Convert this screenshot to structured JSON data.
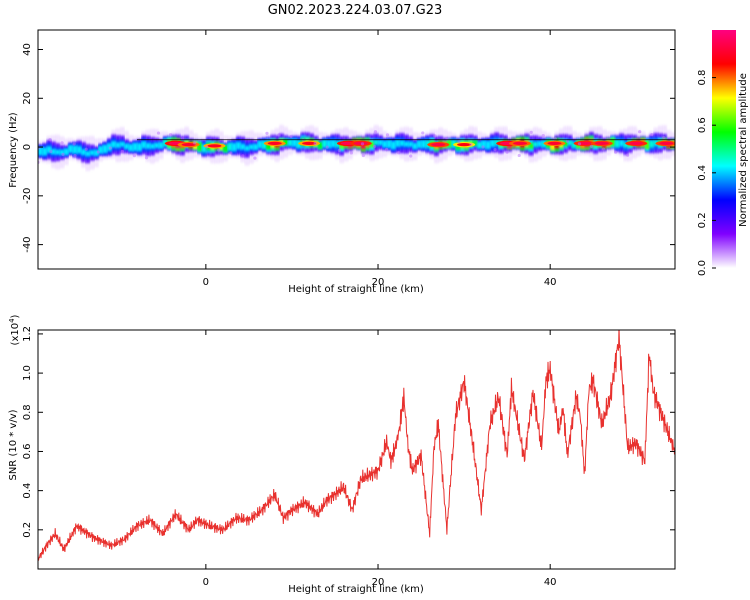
{
  "figure": {
    "title": "GN02.2023.224.03.07.G23"
  },
  "colorbar": {
    "label": "Normalized spectral amplitude",
    "ticks": [
      0.0,
      0.2,
      0.4,
      0.6,
      0.8
    ],
    "tick_labels": [
      "0.0",
      "0.2",
      "0.4",
      "0.6",
      "0.8"
    ],
    "range": [
      0,
      1
    ],
    "colormap": [
      "#ffffff",
      "#8000ff",
      "#0000ff",
      "#00ffff",
      "#00ff00",
      "#ffff00",
      "#ff0000",
      "#ff0080"
    ]
  },
  "chart_data": [
    {
      "type": "heatmap",
      "xlabel": "Height of straight line (km)",
      "ylabel": "Frequency (Hz)",
      "xlim": [
        -19.5,
        54.5
      ],
      "ylim": [
        -50,
        48
      ],
      "xticks": [
        0,
        20,
        40
      ],
      "xtick_labels": [
        "0",
        "20",
        "40"
      ],
      "yticks": [
        -40,
        -20,
        0,
        20,
        40
      ],
      "ytick_labels": [
        "-40",
        "-20",
        "0",
        "20",
        "40"
      ],
      "grid": false,
      "band": {
        "x_range": [
          -19.5,
          54.5
        ],
        "center_frequency": [
          [
            -19.5,
            -1.5
          ],
          [
            -17,
            -2
          ],
          [
            -15,
            -1
          ],
          [
            -13,
            -3
          ],
          [
            -11,
            1
          ],
          [
            -8,
            0
          ],
          [
            -4,
            1.5
          ],
          [
            0,
            0
          ],
          [
            5,
            0
          ],
          [
            10,
            2
          ],
          [
            15,
            1
          ],
          [
            20,
            1.5
          ],
          [
            25,
            1
          ],
          [
            30,
            1
          ],
          [
            35,
            1.5
          ],
          [
            40,
            1
          ],
          [
            45,
            1.5
          ],
          [
            50,
            1.5
          ],
          [
            54.5,
            1.5
          ]
        ],
        "half_width": 3,
        "hot_spots": [
          [
            -3.5,
            1.5,
            1.0
          ],
          [
            -2,
            1.0,
            0.8
          ],
          [
            1,
            0.5,
            0.7
          ],
          [
            8,
            1.5,
            0.75
          ],
          [
            12,
            1.5,
            0.7
          ],
          [
            16.5,
            1.5,
            1.0
          ],
          [
            18,
            1.5,
            0.95
          ],
          [
            27,
            1.0,
            0.9
          ],
          [
            30,
            1.0,
            0.6
          ],
          [
            35,
            1.5,
            1.0
          ],
          [
            36.5,
            1.5,
            0.85
          ],
          [
            40.5,
            1.5,
            0.8
          ],
          [
            44,
            1.5,
            0.95
          ],
          [
            46,
            1.5,
            0.9
          ],
          [
            50,
            1.5,
            0.95
          ],
          [
            53.5,
            1.5,
            0.9
          ]
        ]
      }
    },
    {
      "type": "line",
      "xlabel": "Height of straight line (km)",
      "ylabel": "SNR (10 * v/v)",
      "yscale_label": "(x10",
      "yscale_exponent": "4",
      "yscale_suffix": ")",
      "xlim": [
        -19.5,
        54.5
      ],
      "ylim": [
        0.0,
        1.22
      ],
      "xticks": [
        0,
        20,
        40
      ],
      "xtick_labels": [
        "0",
        "20",
        "40"
      ],
      "yticks": [
        0.2,
        0.4,
        0.6,
        0.8,
        1.0,
        1.2
      ],
      "ytick_labels": [
        "0.2",
        "0.4",
        "0.6",
        "0.8",
        "1.0",
        "1.2"
      ],
      "grid": false,
      "color": "#e8312e",
      "series": [
        {
          "x": [
            -19.5,
            -18.5,
            -17.5,
            -16.5,
            -15,
            -13,
            -11,
            -9.5,
            -8,
            -6.5,
            -5,
            -3.5,
            -2,
            -1,
            0.5,
            2,
            3.5,
            5,
            6.5,
            8,
            9,
            10,
            11.5,
            13,
            14,
            15,
            16,
            17,
            18,
            19,
            20,
            21,
            21.5,
            22,
            22.5,
            23,
            23.5,
            24,
            25,
            26,
            26.5,
            27,
            28,
            29,
            30,
            31,
            32,
            33,
            34,
            35,
            35.5,
            36,
            37,
            38,
            39,
            39.5,
            40,
            41,
            41.5,
            42,
            43,
            43.5,
            44,
            44.5,
            45,
            46,
            47,
            48,
            49,
            50,
            51,
            51.5,
            52,
            53,
            54,
            54.5
          ],
          "y": [
            0.05,
            0.12,
            0.18,
            0.1,
            0.22,
            0.16,
            0.12,
            0.15,
            0.22,
            0.25,
            0.18,
            0.28,
            0.2,
            0.25,
            0.22,
            0.2,
            0.26,
            0.25,
            0.3,
            0.38,
            0.26,
            0.3,
            0.34,
            0.28,
            0.35,
            0.38,
            0.42,
            0.3,
            0.46,
            0.48,
            0.5,
            0.65,
            0.55,
            0.62,
            0.72,
            0.88,
            0.62,
            0.5,
            0.58,
            0.18,
            0.62,
            0.74,
            0.2,
            0.78,
            0.96,
            0.64,
            0.3,
            0.74,
            0.88,
            0.58,
            0.92,
            0.8,
            0.56,
            0.9,
            0.62,
            0.96,
            1.02,
            0.7,
            0.82,
            0.58,
            0.88,
            0.78,
            0.48,
            0.92,
            0.96,
            0.74,
            0.88,
            1.18,
            0.62,
            0.64,
            0.55,
            1.1,
            0.9,
            0.78,
            0.66,
            0.6
          ]
        }
      ]
    }
  ]
}
